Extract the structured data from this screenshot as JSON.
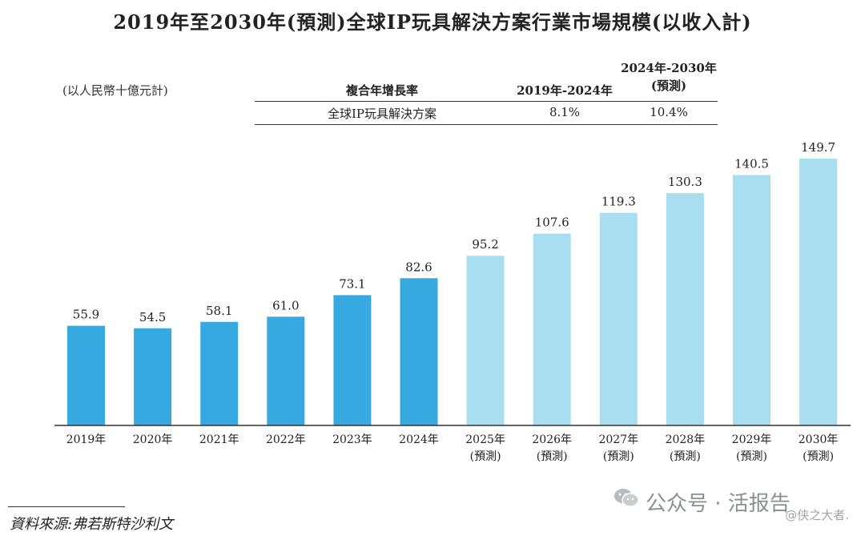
{
  "title": "2019年至2030年(預測)全球IP玩具解決方案行業市場規模(以收入計)",
  "unit_label": "(以人民幣十億元計)",
  "cagr_table": {
    "header_label": "複合年增長率",
    "period1": "2019年-2024年",
    "period2": "2024年-2030年(預測)",
    "row_label": "全球IP玩具解決方案",
    "value1": "8.1%",
    "value2": "10.4%"
  },
  "source": "資料來源:弗若斯特沙利文",
  "watermark": {
    "main": "公众号 · 活报告",
    "sub": "@侠之大者."
  },
  "colors": {
    "historical": "#36A9E1",
    "forecast": "#A8DEF0",
    "axis": "#333333"
  },
  "chart_data": {
    "type": "bar",
    "title": "2019年至2030年(預測)全球IP玩具解決方案行業市場規模(以收入計)",
    "ylabel": "(以人民幣十億元計)",
    "xlabel": "",
    "ylim": [
      0,
      160
    ],
    "categories": [
      "2019年",
      "2020年",
      "2021年",
      "2022年",
      "2023年",
      "2024年",
      "2025年",
      "2026年",
      "2027年",
      "2028年",
      "2029年",
      "2030年"
    ],
    "category_sublabels": [
      "",
      "",
      "",
      "",
      "",
      "",
      "(預測)",
      "(預測)",
      "(預測)",
      "(預測)",
      "(預測)",
      "(預測)"
    ],
    "values": [
      55.9,
      54.5,
      58.1,
      61.0,
      73.1,
      82.6,
      95.2,
      107.6,
      119.3,
      130.3,
      140.5,
      149.7
    ],
    "value_labels": [
      "55.9",
      "54.5",
      "58.1",
      "61.0",
      "73.1",
      "82.6",
      "95.2",
      "107.6",
      "119.3",
      "130.3",
      "140.5",
      "149.7"
    ],
    "forecast": [
      false,
      false,
      false,
      false,
      false,
      false,
      true,
      true,
      true,
      true,
      true,
      true
    ]
  }
}
